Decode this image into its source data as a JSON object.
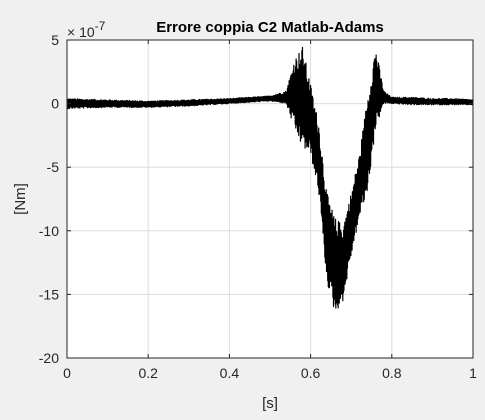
{
  "colors": {
    "figure_background": "#f0f0f0",
    "axes_background": "#ffffff",
    "grid": "#dcdcdc",
    "axis": "#262626",
    "series": "#000000"
  },
  "chart_data": {
    "type": "line",
    "title": "Errore coppia C2 Matlab-Adams",
    "xlabel": "[s]",
    "ylabel": "[Nm]",
    "y_exponent_base": "× 10",
    "y_exponent_power": "-7",
    "xlim": [
      0,
      1
    ],
    "ylim": [
      -20,
      5
    ],
    "grid": true,
    "legend": "none",
    "x_ticks": [
      0,
      0.2,
      0.4,
      0.6,
      0.8,
      1
    ],
    "x_tick_labels": [
      "0",
      "0.2",
      "0.4",
      "0.6",
      "0.8",
      "1"
    ],
    "y_ticks": [
      5,
      0,
      -5,
      -10,
      -15,
      -20
    ],
    "y_tick_labels": [
      "5",
      "0",
      "-5",
      "-10",
      "-15",
      "-20"
    ],
    "series": [
      {
        "color": "#000000",
        "envelope_x": [
          0,
          0.1,
          0.2,
          0.3,
          0.4,
          0.5,
          0.54,
          0.56,
          0.58,
          0.6,
          0.62,
          0.64,
          0.66,
          0.68,
          0.7,
          0.72,
          0.74,
          0.76,
          0.78,
          0.8,
          0.85,
          0.9,
          0.95,
          1.0
        ],
        "envelope_upper": [
          0.4,
          0.3,
          0.2,
          0.3,
          0.4,
          0.6,
          1.0,
          3.5,
          4.5,
          1.5,
          -1.5,
          -7,
          -9,
          -9.5,
          -7,
          -4,
          0.5,
          4.5,
          1.0,
          0.5,
          0.5,
          0.4,
          0.4,
          0.3
        ],
        "envelope_lower": [
          -0.4,
          -0.3,
          -0.3,
          -0.2,
          0.0,
          0.2,
          0.0,
          -2.0,
          -3.5,
          -4.0,
          -7.0,
          -14.0,
          -16.5,
          -15.5,
          -12.0,
          -9.0,
          -7.0,
          -2.0,
          0.0,
          0.0,
          -0.1,
          -0.1,
          -0.1,
          -0.1
        ]
      }
    ]
  }
}
